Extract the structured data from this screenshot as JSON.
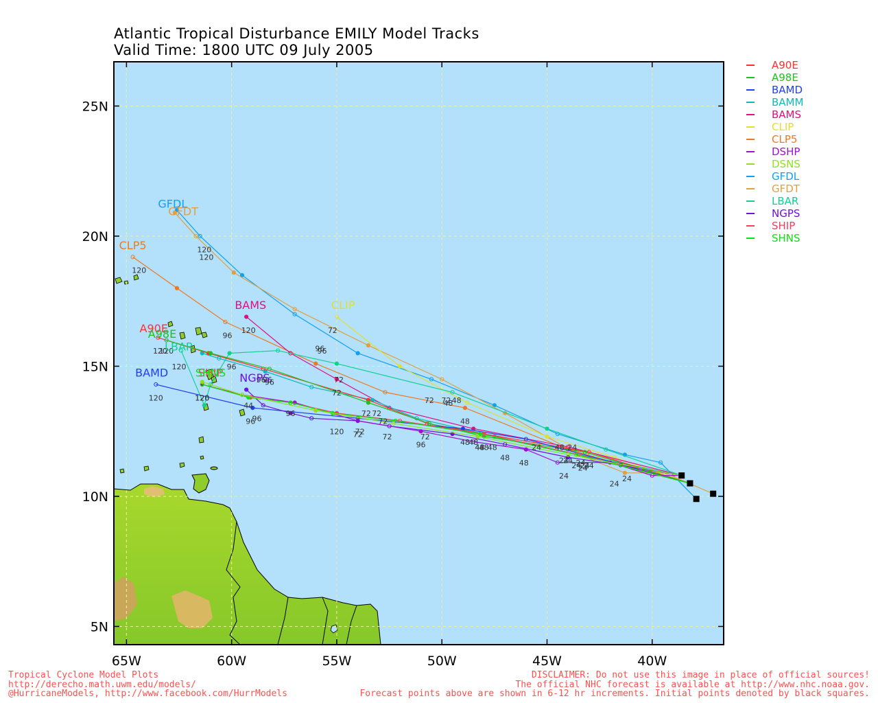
{
  "title": {
    "line1": "Atlantic Tropical Disturbance EMILY Model Tracks",
    "line2": "Valid Time: 1800 UTC 09 July 2005"
  },
  "axes": {
    "x_ticks": [
      {
        "lon": -65,
        "label": "65W"
      },
      {
        "lon": -60,
        "label": "60W"
      },
      {
        "lon": -55,
        "label": "55W"
      },
      {
        "lon": -50,
        "label": "50W"
      },
      {
        "lon": -45,
        "label": "45W"
      },
      {
        "lon": -40,
        "label": "40W"
      }
    ],
    "y_ticks": [
      {
        "lat": 25,
        "label": "25N"
      },
      {
        "lat": 20,
        "label": "20N"
      },
      {
        "lat": 15,
        "label": "15N"
      },
      {
        "lat": 10,
        "label": "10N"
      },
      {
        "lat": 5,
        "label": "5N"
      }
    ],
    "lon_range": [
      -65.6,
      -36.6
    ],
    "lat_range": [
      4.3,
      26.7
    ],
    "grid": true
  },
  "colors": {
    "ocean": "#b3e0fb",
    "land": "#8fcc2c",
    "grid": "#f0f0a0"
  },
  "legend": [
    {
      "name": "A90E",
      "color": "#ff3030"
    },
    {
      "name": "A98E",
      "color": "#20c020"
    },
    {
      "name": "BAMD",
      "color": "#2040f0"
    },
    {
      "name": "BAMM",
      "color": "#10b8b8"
    },
    {
      "name": "BAMS",
      "color": "#e01080"
    },
    {
      "name": "CLIP",
      "color": "#e0e030"
    },
    {
      "name": "CLP5",
      "color": "#f07820"
    },
    {
      "name": "DSHP",
      "color": "#a010d0"
    },
    {
      "name": "DSNS",
      "color": "#90e020"
    },
    {
      "name": "GFDL",
      "color": "#10a0f0"
    },
    {
      "name": "GFDT",
      "color": "#e0a040"
    },
    {
      "name": "LBAR",
      "color": "#10d090"
    },
    {
      "name": "NGPS",
      "color": "#7010e0"
    },
    {
      "name": "SHIP",
      "color": "#f04060"
    },
    {
      "name": "SHNS",
      "color": "#10e010"
    }
  ],
  "chart_data": {
    "type": "map_tracks",
    "initial_positions": [
      {
        "lon": -38.6,
        "lat": 10.8
      },
      {
        "lon": -38.2,
        "lat": 10.5
      },
      {
        "lon": -37.9,
        "lat": 9.9
      },
      {
        "lon": -37.1,
        "lat": 10.1
      }
    ],
    "tracks": [
      {
        "name": "GFDL",
        "end_label": "GFDL",
        "end_lon": -62.8,
        "end_lat": 21.1,
        "points": [
          [
            -37.9,
            9.9
          ],
          [
            -39.6,
            11.3
          ],
          [
            -41.3,
            11.6
          ],
          [
            -44.5,
            12.4
          ],
          [
            -47.5,
            13.5
          ],
          [
            -50.5,
            14.5
          ],
          [
            -54,
            15.5
          ],
          [
            -57,
            17.0
          ],
          [
            -59.5,
            18.5
          ],
          [
            -61.5,
            20.0
          ],
          [
            -62.6,
            21.0
          ]
        ],
        "tau": [
          [
            -41.2,
            10.9,
            "24"
          ],
          [
            -44.4,
            12.1,
            "48"
          ],
          [
            -50.6,
            13.9,
            "72"
          ],
          [
            -55.8,
            15.9,
            "96"
          ],
          [
            -61.3,
            19.7,
            "120"
          ]
        ]
      },
      {
        "name": "GFDT",
        "end_label": "GFDT",
        "end_lon": -62.3,
        "end_lat": 20.8,
        "points": [
          [
            -37.1,
            10.1
          ],
          [
            -39.4,
            10.9
          ],
          [
            -41.3,
            10.9
          ],
          [
            -43.5,
            11.6
          ],
          [
            -47.0,
            13.2
          ],
          [
            -50.0,
            14.5
          ],
          [
            -53.5,
            15.8
          ],
          [
            -57,
            17.2
          ],
          [
            -59.9,
            18.6
          ],
          [
            -61.7,
            20.0
          ],
          [
            -62.7,
            20.9
          ]
        ],
        "tau": [
          [
            -41.8,
            10.7,
            "24"
          ],
          [
            -43.6,
            11.4,
            "24"
          ],
          [
            -49.3,
            13.9,
            "48"
          ],
          [
            -55.7,
            15.8,
            "96"
          ],
          [
            -61.2,
            19.4,
            "120"
          ]
        ]
      },
      {
        "name": "CLIP",
        "end_label": "CLIP",
        "end_lon": -54.7,
        "end_lat": 17.2,
        "points": [
          [
            -38.2,
            10.5
          ],
          [
            -41.8,
            11.5
          ],
          [
            -45.0,
            12.3
          ],
          [
            -48.8,
            13.6
          ],
          [
            -52.0,
            15.0
          ],
          [
            -55.0,
            16.9
          ]
        ],
        "tau": [
          [
            -45.5,
            12.1,
            "24"
          ],
          [
            -49.7,
            13.8,
            "48"
          ],
          [
            -55.2,
            16.6,
            "72"
          ]
        ]
      },
      {
        "name": "CLP5",
        "end_label": "CLP5",
        "end_lon": -64.7,
        "end_lat": 19.5,
        "points": [
          [
            -38.2,
            10.5
          ],
          [
            -44.0,
            11.8
          ],
          [
            -48.9,
            13.4
          ],
          [
            -52.7,
            14.0
          ],
          [
            -56.0,
            15.1
          ],
          [
            -60.3,
            16.7
          ],
          [
            -62.6,
            18.0
          ],
          [
            -64.7,
            19.2
          ]
        ],
        "tau": [
          [
            -44.0,
            11.6,
            "24"
          ],
          [
            -48.9,
            13.1,
            "48"
          ],
          [
            -60.2,
            16.4,
            "96"
          ],
          [
            -64.4,
            18.9,
            "120"
          ]
        ]
      },
      {
        "name": "BAMS",
        "end_label": "BAMS",
        "end_lon": -59.1,
        "end_lat": 17.2,
        "points": [
          [
            -38.6,
            10.8
          ],
          [
            -44.0,
            11.9
          ],
          [
            -48.5,
            12.6
          ],
          [
            -52.5,
            13.4
          ],
          [
            -55.0,
            14.5
          ],
          [
            -57.2,
            15.5
          ],
          [
            -59.3,
            16.9
          ]
        ],
        "tau": [
          [
            -44.2,
            11.6,
            "24"
          ],
          [
            -48.5,
            12.3,
            "48"
          ],
          [
            -52.8,
            13.1,
            "72"
          ],
          [
            -55.0,
            14.2,
            "72"
          ],
          [
            -59.2,
            16.6,
            "120"
          ]
        ]
      },
      {
        "name": "BAMM",
        "end_label": "",
        "end_lon": -62.3,
        "end_lat": 15.5,
        "points": [
          [
            -38.6,
            10.8
          ],
          [
            -43.5,
            11.6
          ],
          [
            -47.5,
            12.3
          ],
          [
            -51.2,
            13.0
          ],
          [
            -53.3,
            13.7
          ],
          [
            -56.2,
            14.2
          ],
          [
            -58.4,
            14.8
          ],
          [
            -60.6,
            15.3
          ],
          [
            -61.4,
            15.5
          ]
        ],
        "tau": [
          [
            -43.4,
            11.5,
            "24"
          ],
          [
            -47.6,
            12.1,
            "48"
          ],
          [
            -53.1,
            13.4,
            "72"
          ],
          [
            -58.2,
            14.6,
            "96"
          ],
          [
            -62.5,
            15.2,
            "120"
          ]
        ]
      },
      {
        "name": "LBAR",
        "end_label": "LBAR",
        "end_lon": -62.5,
        "end_lat": 15.6,
        "points": [
          [
            -38.6,
            10.8
          ],
          [
            -42.2,
            11.8
          ],
          [
            -45.0,
            12.6
          ],
          [
            -49.5,
            14.0
          ],
          [
            -55.0,
            15.1
          ],
          [
            -57.8,
            15.6
          ],
          [
            -60.1,
            15.5
          ],
          [
            -61.0,
            14.3
          ],
          [
            -61.3,
            13.5
          ],
          [
            -62.4,
            15.6
          ]
        ],
        "tau": [
          [
            -43.8,
            12.1,
            "24"
          ],
          [
            -49.8,
            13.9,
            "72"
          ],
          [
            -54.9,
            14.7,
            "72"
          ],
          [
            -60.0,
            15.2,
            "96"
          ]
        ]
      },
      {
        "name": "A90E",
        "end_label": "A90E",
        "end_lon": -63.7,
        "end_lat": 16.3,
        "points": [
          [
            -38.2,
            10.5
          ],
          [
            -43.0,
            11.7
          ],
          [
            -48.0,
            12.4
          ],
          [
            -50.7,
            12.8
          ],
          [
            -53.5,
            13.7
          ],
          [
            -58.5,
            14.9
          ],
          [
            -61.1,
            15.5
          ],
          [
            -63.5,
            16.1
          ]
        ],
        "tau": [
          [
            -43.0,
            11.4,
            "24"
          ],
          [
            -48.0,
            12.1,
            "48"
          ],
          [
            -53.6,
            13.4,
            "72"
          ],
          [
            -58.3,
            14.7,
            "96"
          ],
          [
            -63.4,
            15.8,
            "120"
          ]
        ]
      },
      {
        "name": "A98E",
        "end_label": "A98E",
        "end_lon": -63.3,
        "end_lat": 16.1,
        "points": [
          [
            -38.2,
            10.5
          ],
          [
            -43.2,
            11.7
          ],
          [
            -48.0,
            12.3
          ],
          [
            -50.6,
            12.8
          ],
          [
            -53.5,
            13.6
          ],
          [
            -58.2,
            14.9
          ],
          [
            -61.0,
            15.5
          ],
          [
            -63.1,
            16.0
          ]
        ],
        "tau": [
          [
            -43.2,
            11.4,
            "24"
          ],
          [
            -48.2,
            12.1,
            "48"
          ],
          [
            -58.6,
            14.7,
            "96"
          ],
          [
            -63.1,
            15.8,
            "120"
          ]
        ]
      },
      {
        "name": "BAMD",
        "end_label": "BAMD",
        "end_lon": -63.8,
        "end_lat": 14.6,
        "points": [
          [
            -38.2,
            10.5
          ],
          [
            -46.0,
            12.2
          ],
          [
            -49.0,
            12.6
          ],
          [
            -54.0,
            13.0
          ],
          [
            -59.0,
            13.4
          ],
          [
            -63.6,
            14.3
          ]
        ],
        "tau": [
          [
            -48.9,
            12.3,
            "48"
          ],
          [
            -53.9,
            12.7,
            "72"
          ],
          [
            -59.1,
            13.1,
            "96"
          ],
          [
            -63.6,
            14.0,
            "120"
          ]
        ]
      },
      {
        "name": "NGPS",
        "end_label": "NGPS",
        "end_lon": -58.9,
        "end_lat": 14.4,
        "points": [
          [
            -38.6,
            10.8
          ],
          [
            -41.5,
            11.2
          ],
          [
            -44.0,
            11.5
          ],
          [
            -47.0,
            12.0
          ],
          [
            -49.5,
            12.4
          ],
          [
            -52.5,
            12.7
          ],
          [
            -54.0,
            12.9
          ],
          [
            -56.2,
            13.0
          ],
          [
            -57.2,
            13.2
          ],
          [
            -58.5,
            13.5
          ],
          [
            -59.3,
            14.1
          ]
        ],
        "tau": [
          [
            -47.0,
            11.7,
            "48"
          ],
          [
            -52.6,
            12.5,
            "72"
          ],
          [
            -54.0,
            12.6,
            "72"
          ],
          [
            -58.8,
            13.2,
            "96"
          ],
          [
            -55.0,
            12.7,
            "120"
          ]
        ]
      },
      {
        "name": "DSHP",
        "end_label": "",
        "end_lon": -61,
        "end_lat": 14.4,
        "points": [
          [
            -38.6,
            10.8
          ],
          [
            -40.0,
            10.8
          ],
          [
            -42.0,
            11.3
          ],
          [
            -44.5,
            11.3
          ],
          [
            -46.0,
            11.8
          ],
          [
            -48.5,
            12.1
          ],
          [
            -51.0,
            12.5
          ],
          [
            -54.0,
            12.9
          ],
          [
            -57.0,
            13.6
          ],
          [
            -59.5,
            13.9
          ],
          [
            -61.4,
            14.3
          ]
        ],
        "tau": [
          [
            -44.2,
            11.0,
            "24"
          ],
          [
            -46.1,
            11.5,
            "48"
          ],
          [
            -51.0,
            12.2,
            "96"
          ],
          [
            -57.2,
            13.4,
            "96"
          ],
          [
            -61.4,
            14.0,
            "120"
          ]
        ]
      },
      {
        "name": "SHIP",
        "end_label": "SHIP",
        "end_lon": -61,
        "end_lat": 14.6,
        "points": [
          [
            -38.2,
            10.5
          ],
          [
            -43.5,
            11.6
          ],
          [
            -48.0,
            12.4
          ],
          [
            -52.0,
            12.9
          ],
          [
            -55.0,
            13.2
          ],
          [
            -57.2,
            13.6
          ],
          [
            -59.1,
            13.8
          ],
          [
            -61.4,
            14.3
          ]
        ],
        "tau": [
          [
            -43.3,
            11.3,
            "24"
          ],
          [
            -50.8,
            12.5,
            "72"
          ],
          [
            -59.2,
            13.7,
            "44"
          ],
          [
            -61.4,
            14.0,
            "120"
          ]
        ]
      },
      {
        "name": "SHNS",
        "end_label": "SHNS",
        "end_lon": -61,
        "end_lat": 14.6,
        "points": [
          [
            -38.2,
            10.5
          ],
          [
            -43.6,
            11.6
          ],
          [
            -48.2,
            12.4
          ],
          [
            -52.2,
            12.9
          ],
          [
            -55.2,
            13.2
          ],
          [
            -57.2,
            13.6
          ],
          [
            -59.2,
            13.8
          ],
          [
            -61.4,
            14.3
          ]
        ],
        "tau": [
          [
            -48.2,
            12.1,
            "48"
          ],
          [
            -61.4,
            14.0,
            "120"
          ]
        ]
      },
      {
        "name": "DSNS",
        "end_label": "",
        "end_lon": -61,
        "end_lat": 14.6,
        "points": [
          [
            -38.6,
            10.8
          ],
          [
            -44.0,
            11.6
          ],
          [
            -48.3,
            12.3
          ],
          [
            -52.3,
            12.8
          ],
          [
            -56.0,
            13.3
          ],
          [
            -59.5,
            13.9
          ],
          [
            -61.4,
            14.4
          ]
        ],
        "tau": []
      }
    ]
  },
  "footer": {
    "left1": "Tropical Cyclone Model Plots",
    "left2": "http://derecho.math.uwm.edu/models/",
    "left3": "@HurricaneModels, http://www.facebook.com/HurrModels",
    "right1": "DISCLAIMER: Do not use this image in place of official sources!",
    "right2": "The official NHC forecast is available at http://www.nhc.noaa.gov.",
    "right3": "Forecast points above are shown in 6-12 hr increments. Initial points denoted by black squares."
  }
}
